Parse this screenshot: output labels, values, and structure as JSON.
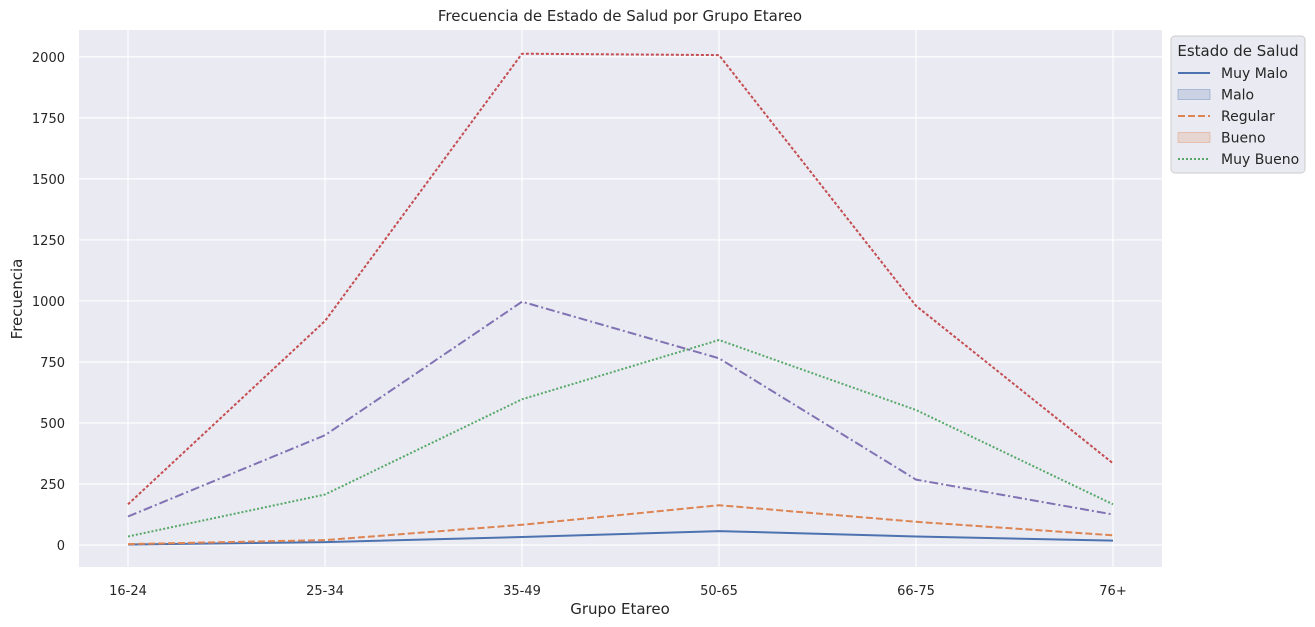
{
  "chart_data": {
    "type": "line",
    "title": "Frecuencia de Estado de Salud por Grupo Etareo",
    "xlabel": "Grupo Etareo",
    "ylabel": "Frecuencia",
    "categories": [
      "16-24",
      "25-34",
      "35-49",
      "50-65",
      "66-75",
      "76+"
    ],
    "ylim": [
      -90,
      2110
    ],
    "yticks": [
      0,
      250,
      500,
      750,
      1000,
      1250,
      1500,
      1750,
      2000
    ],
    "grid": true,
    "background": "#eaeaf2",
    "legend": {
      "title": "Estado de Salud",
      "placement": "outside-top-right",
      "entries": [
        {
          "label": "Muy Malo",
          "kind": "line",
          "color": "#4c72b0",
          "dash": "solid"
        },
        {
          "label": "Malo",
          "kind": "patch",
          "color": "#4c72b0"
        },
        {
          "label": "Regular",
          "kind": "line",
          "color": "#dd8452",
          "dash": "dashed"
        },
        {
          "label": "Bueno",
          "kind": "patch",
          "color": "#dd8452"
        },
        {
          "label": "Muy Bueno",
          "kind": "line",
          "color": "#55a868",
          "dash": "dotted"
        }
      ]
    },
    "series": [
      {
        "color": "#4c72b0",
        "dash": "solid",
        "values": [
          2,
          12,
          33,
          57,
          35,
          18
        ]
      },
      {
        "color": "#dd8452",
        "dash": "dashed",
        "values": [
          4,
          20,
          83,
          163,
          95,
          40
        ]
      },
      {
        "color": "#55a868",
        "dash": "dotted",
        "values": [
          35,
          207,
          597,
          840,
          553,
          167
        ]
      },
      {
        "color": "#c44e52",
        "dash": "densedash",
        "values": [
          167,
          918,
          2013,
          2007,
          980,
          335
        ]
      },
      {
        "color": "#8172b3",
        "dash": "dashdot",
        "values": [
          117,
          450,
          997,
          765,
          268,
          125
        ]
      }
    ]
  }
}
